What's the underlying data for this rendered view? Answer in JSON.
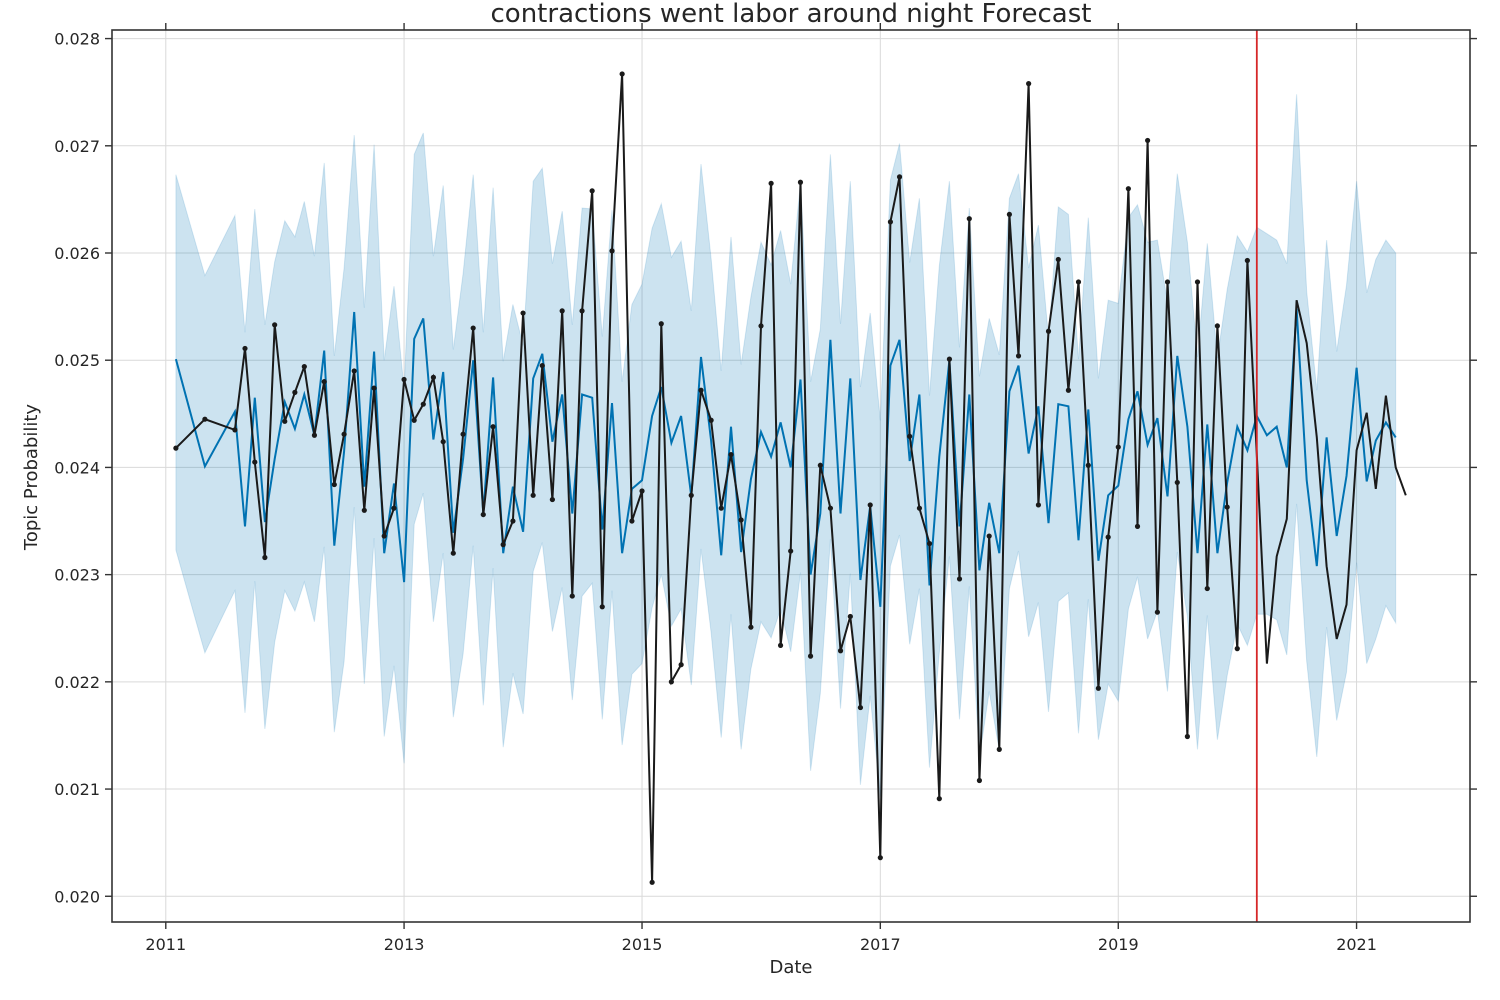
{
  "chart_data": {
    "type": "line",
    "title": "contractions went labor around night Forecast",
    "xlabel": "Date",
    "ylabel": "Topic Probability",
    "xlim": [
      "2010-07-20",
      "2021-12-15"
    ],
    "ylim": [
      0.01976,
      0.02808
    ],
    "x_ticks": [
      "2011-01-01",
      "2013-01-01",
      "2015-01-01",
      "2017-01-01",
      "2019-01-01",
      "2021-01-01"
    ],
    "x_tick_labels": [
      "2011",
      "2013",
      "2015",
      "2017",
      "2019",
      "2021"
    ],
    "y_ticks": [
      0.02,
      0.021,
      0.022,
      0.023,
      0.024,
      0.025,
      0.026,
      0.027,
      0.028
    ],
    "y_tick_labels": [
      "0.020",
      "0.021",
      "0.022",
      "0.023",
      "0.024",
      "0.025",
      "0.026",
      "0.027",
      "0.028"
    ],
    "grid": true,
    "changepoint_date": "2020-03-01",
    "colors": {
      "forecast": "#0072b2",
      "band": "#0072b2",
      "actual": "#1a1a1a",
      "changepoint": "#d62728",
      "grid": "#d9d9d9",
      "frame": "#333333"
    },
    "series": [
      {
        "role": "forecast",
        "x": [
          "2011-02-01",
          "2011-05-01",
          "2011-08-01",
          "2011-09-01",
          "2011-10-01",
          "2011-11-01",
          "2011-12-01",
          "2012-01-01",
          "2012-02-01",
          "2012-03-01",
          "2012-04-01",
          "2012-05-01",
          "2012-06-01",
          "2012-07-01",
          "2012-08-01",
          "2012-09-01",
          "2012-10-01",
          "2012-11-01",
          "2012-12-01",
          "2013-01-01",
          "2013-02-01",
          "2013-03-01",
          "2013-04-01",
          "2013-05-01",
          "2013-06-01",
          "2013-07-01",
          "2013-08-01",
          "2013-09-01",
          "2013-10-01",
          "2013-11-01",
          "2013-12-01",
          "2014-01-01",
          "2014-02-01",
          "2014-03-01",
          "2014-04-01",
          "2014-05-01",
          "2014-06-01",
          "2014-07-01",
          "2014-08-01",
          "2014-09-01",
          "2014-10-01",
          "2014-11-01",
          "2014-12-01",
          "2015-01-01",
          "2015-02-01",
          "2015-03-01",
          "2015-04-01",
          "2015-05-01",
          "2015-06-01",
          "2015-07-01",
          "2015-08-01",
          "2015-09-01",
          "2015-10-01",
          "2015-11-01",
          "2015-12-01",
          "2016-01-01",
          "2016-02-01",
          "2016-03-01",
          "2016-04-01",
          "2016-05-01",
          "2016-06-01",
          "2016-07-01",
          "2016-08-01",
          "2016-09-01",
          "2016-10-01",
          "2016-11-01",
          "2016-12-01",
          "2017-01-01",
          "2017-02-01",
          "2017-03-01",
          "2017-04-01",
          "2017-05-01",
          "2017-06-01",
          "2017-07-01",
          "2017-08-01",
          "2017-09-01",
          "2017-10-01",
          "2017-11-01",
          "2017-12-01",
          "2018-01-01",
          "2018-02-01",
          "2018-03-01",
          "2018-04-01",
          "2018-05-01",
          "2018-06-01",
          "2018-07-01",
          "2018-08-01",
          "2018-09-01",
          "2018-10-01",
          "2018-11-01",
          "2018-12-01",
          "2019-01-01",
          "2019-02-01",
          "2019-03-01",
          "2019-04-01",
          "2019-05-01",
          "2019-06-01",
          "2019-07-01",
          "2019-08-01",
          "2019-09-01",
          "2019-10-01",
          "2019-11-01",
          "2019-12-01",
          "2020-01-01",
          "2020-02-01",
          "2020-03-01",
          "2020-04-01",
          "2020-05-01",
          "2020-06-01",
          "2020-07-01",
          "2020-08-01",
          "2020-09-01",
          "2020-10-01",
          "2020-11-01",
          "2020-12-01",
          "2021-01-01",
          "2021-02-01",
          "2021-03-01",
          "2021-04-01",
          "2021-05-01"
        ],
        "yhat": [
          0.02501,
          0.02401,
          0.02452,
          0.02345,
          0.02465,
          0.02349,
          0.02408,
          0.02461,
          0.02436,
          0.02468,
          0.0243,
          0.02509,
          0.02327,
          0.02415,
          0.02545,
          0.02382,
          0.02508,
          0.0232,
          0.02385,
          0.02293,
          0.0252,
          0.02539,
          0.02426,
          0.02489,
          0.02339,
          0.02408,
          0.025,
          0.02357,
          0.02484,
          0.0232,
          0.02382,
          0.0234,
          0.02483,
          0.02506,
          0.02424,
          0.02468,
          0.02357,
          0.02468,
          0.02465,
          0.02342,
          0.0246,
          0.0232,
          0.0238,
          0.02388,
          0.02448,
          0.02475,
          0.02423,
          0.02448,
          0.02373,
          0.02503,
          0.02425,
          0.02318,
          0.02438,
          0.02321,
          0.02389,
          0.02433,
          0.0241,
          0.02442,
          0.024,
          0.02482,
          0.023,
          0.02357,
          0.02519,
          0.02357,
          0.02483,
          0.02295,
          0.02364,
          0.0227,
          0.02495,
          0.02519,
          0.02406,
          0.02468,
          0.0229,
          0.0241,
          0.025,
          0.02345,
          0.02468,
          0.02304,
          0.02367,
          0.0232,
          0.02471,
          0.02495,
          0.02413,
          0.02457,
          0.02348,
          0.02459,
          0.02457,
          0.02332,
          0.02454,
          0.02313,
          0.02374,
          0.02383,
          0.02445,
          0.02471,
          0.02421,
          0.02446,
          0.02373,
          0.02504,
          0.02438,
          0.0232,
          0.0244,
          0.0232,
          0.02386,
          0.02438,
          0.02416,
          0.02448,
          0.0243,
          0.02438,
          0.024,
          0.02548,
          0.02388,
          0.02308,
          0.02428,
          0.02336,
          0.02392,
          0.02493,
          0.02387,
          0.02425,
          0.02442,
          0.02428,
          0.02427
        ],
        "yhat_lower": [
          0.02323,
          0.02227,
          0.02285,
          0.02171,
          0.02294,
          0.02156,
          0.02237,
          0.02285,
          0.02266,
          0.02293,
          0.02256,
          0.02326,
          0.02153,
          0.02219,
          0.02363,
          0.02198,
          0.02334,
          0.02149,
          0.02215,
          0.02124,
          0.02347,
          0.02376,
          0.02256,
          0.0232,
          0.02167,
          0.02226,
          0.02327,
          0.02178,
          0.02306,
          0.02139,
          0.02208,
          0.0217,
          0.02303,
          0.0233,
          0.02247,
          0.02288,
          0.02183,
          0.0228,
          0.02292,
          0.02165,
          0.02285,
          0.02141,
          0.02207,
          0.02217,
          0.02269,
          0.023,
          0.02252,
          0.02268,
          0.02197,
          0.02324,
          0.02246,
          0.02148,
          0.02263,
          0.02137,
          0.02212,
          0.02256,
          0.02241,
          0.02268,
          0.02228,
          0.02302,
          0.02117,
          0.02189,
          0.02333,
          0.02175,
          0.02301,
          0.02104,
          0.02187,
          0.02093,
          0.02308,
          0.02337,
          0.02235,
          0.02287,
          0.0212,
          0.02227,
          0.02317,
          0.02165,
          0.02289,
          0.02129,
          0.02191,
          0.02136,
          0.02287,
          0.02322,
          0.02242,
          0.02274,
          0.02172,
          0.02275,
          0.02283,
          0.02152,
          0.02277,
          0.02146,
          0.02198,
          0.02182,
          0.02268,
          0.02298,
          0.0224,
          0.02266,
          0.02191,
          0.02321,
          0.02261,
          0.02137,
          0.02262,
          0.02146,
          0.02206,
          0.02254,
          0.02234,
          0.02263,
          0.02263,
          0.02258,
          0.02225,
          0.02366,
          0.02219,
          0.0213,
          0.02251,
          0.02164,
          0.02209,
          0.02311,
          0.02217,
          0.0224,
          0.02271,
          0.02255,
          0.02242
        ],
        "yhat_upper": [
          0.02673,
          0.02579,
          0.02635,
          0.02526,
          0.02641,
          0.02533,
          0.02592,
          0.0263,
          0.02615,
          0.02648,
          0.02597,
          0.02684,
          0.02504,
          0.02586,
          0.0271,
          0.02549,
          0.02701,
          0.025,
          0.02569,
          0.02473,
          0.02692,
          0.02712,
          0.02597,
          0.02663,
          0.0251,
          0.02581,
          0.02673,
          0.02526,
          0.02661,
          0.02499,
          0.02552,
          0.02514,
          0.02667,
          0.02679,
          0.0259,
          0.02639,
          0.02533,
          0.02642,
          0.02641,
          0.02522,
          0.0264,
          0.0248,
          0.02552,
          0.02571,
          0.02623,
          0.02646,
          0.02596,
          0.02611,
          0.02546,
          0.02683,
          0.02595,
          0.0249,
          0.02615,
          0.02496,
          0.02559,
          0.0261,
          0.02589,
          0.02621,
          0.02571,
          0.02666,
          0.0248,
          0.02529,
          0.02692,
          0.02534,
          0.02667,
          0.02475,
          0.02544,
          0.02444,
          0.02668,
          0.02702,
          0.02591,
          0.02651,
          0.02467,
          0.02588,
          0.02667,
          0.02512,
          0.02642,
          0.02485,
          0.02539,
          0.02505,
          0.02651,
          0.02674,
          0.02586,
          0.02626,
          0.02521,
          0.02643,
          0.02636,
          0.02501,
          0.02633,
          0.02483,
          0.02556,
          0.02553,
          0.02633,
          0.02645,
          0.0261,
          0.02612,
          0.02554,
          0.02674,
          0.0261,
          0.02503,
          0.02609,
          0.02502,
          0.02566,
          0.02616,
          0.02601,
          0.02624,
          0.02618,
          0.02612,
          0.0259,
          0.02748,
          0.02564,
          0.02472,
          0.02612,
          0.02508,
          0.0257,
          0.02667,
          0.02563,
          0.02594,
          0.02612,
          0.026,
          0.02604
        ]
      },
      {
        "role": "actual",
        "x": [
          "2011-02-01",
          "2011-05-01",
          "2011-08-01",
          "2011-09-01",
          "2011-10-01",
          "2011-11-01",
          "2011-12-01",
          "2012-01-01",
          "2012-02-01",
          "2012-03-01",
          "2012-04-01",
          "2012-05-01",
          "2012-06-01",
          "2012-07-01",
          "2012-08-01",
          "2012-09-01",
          "2012-10-01",
          "2012-11-01",
          "2012-12-01",
          "2013-01-01",
          "2013-02-01",
          "2013-03-01",
          "2013-04-01",
          "2013-05-01",
          "2013-06-01",
          "2013-07-01",
          "2013-08-01",
          "2013-09-01",
          "2013-10-01",
          "2013-11-01",
          "2013-12-01",
          "2014-01-01",
          "2014-02-01",
          "2014-03-01",
          "2014-04-01",
          "2014-05-01",
          "2014-06-01",
          "2014-07-01",
          "2014-08-01",
          "2014-09-01",
          "2014-10-01",
          "2014-11-01",
          "2014-12-01",
          "2015-01-01",
          "2015-02-01",
          "2015-03-01",
          "2015-04-01",
          "2015-05-01",
          "2015-06-01",
          "2015-07-01",
          "2015-08-01",
          "2015-09-01",
          "2015-10-01",
          "2015-11-01",
          "2015-12-01",
          "2016-01-01",
          "2016-02-01",
          "2016-03-01",
          "2016-04-01",
          "2016-05-01",
          "2016-06-01",
          "2016-07-01",
          "2016-08-01",
          "2016-09-01",
          "2016-10-01",
          "2016-11-01",
          "2016-12-01",
          "2017-01-01",
          "2017-02-01",
          "2017-03-01",
          "2017-04-01",
          "2017-05-01",
          "2017-06-01",
          "2017-07-01",
          "2017-08-01",
          "2017-09-01",
          "2017-10-01",
          "2017-11-01",
          "2017-12-01",
          "2018-01-01",
          "2018-02-01",
          "2018-03-01",
          "2018-04-01",
          "2018-05-01",
          "2018-06-01",
          "2018-07-01",
          "2018-08-01",
          "2018-09-01",
          "2018-10-01",
          "2018-11-01",
          "2018-12-01",
          "2019-01-01",
          "2019-02-01",
          "2019-03-01",
          "2019-04-01",
          "2019-05-01",
          "2019-06-01",
          "2019-07-01",
          "2019-08-01",
          "2019-09-01",
          "2019-10-01",
          "2019-11-01",
          "2019-12-01",
          "2020-01-01",
          "2020-02-01"
        ],
        "y": [
          0.02418,
          0.02445,
          0.02435,
          0.02511,
          0.02405,
          0.02316,
          0.02533,
          0.02443,
          0.0247,
          0.02494,
          0.0243,
          0.0248,
          0.02384,
          0.02431,
          0.0249,
          0.0236,
          0.02474,
          0.02336,
          0.02362,
          0.02482,
          0.02444,
          0.02459,
          0.02484,
          0.02424,
          0.0232,
          0.02431,
          0.0253,
          0.02356,
          0.02438,
          0.02328,
          0.0235,
          0.02544,
          0.02374,
          0.02495,
          0.0237,
          0.02546,
          0.0228,
          0.02546,
          0.02658,
          0.0227,
          0.02602,
          0.02767,
          0.0235,
          0.02378,
          0.02013,
          0.02534,
          0.022,
          0.02216,
          0.02374,
          0.02472,
          0.02444,
          0.02362,
          0.02412,
          0.02351,
          0.02251,
          0.02532,
          0.02665,
          0.02234,
          0.02322,
          0.02666,
          0.02224,
          0.02402,
          0.02362,
          0.02229,
          0.02261,
          0.02176,
          0.02365,
          0.02036,
          0.02629,
          0.02671,
          0.02429,
          0.02362,
          0.02329,
          0.02091,
          0.02501,
          0.02296,
          0.02632,
          0.02108,
          0.02336,
          0.02137,
          0.02636,
          0.02504,
          0.02758,
          0.02365,
          0.02527,
          0.02594,
          0.02472,
          0.02573,
          0.02402,
          0.02194,
          0.02335,
          0.02419,
          0.0266,
          0.02345,
          0.02705,
          0.02265,
          0.02573,
          0.02386,
          0.02149,
          0.02573,
          0.02287,
          0.02532,
          0.02363,
          0.02231,
          0.02593
        ]
      },
      {
        "role": "projection",
        "x": [
          "2020-02-01",
          "2020-04-01",
          "2020-05-01",
          "2020-06-01",
          "2020-07-01",
          "2020-08-01",
          "2020-09-01",
          "2020-10-01",
          "2020-11-01",
          "2020-12-01",
          "2021-01-01",
          "2021-02-01",
          "2021-03-01",
          "2021-04-01",
          "2021-05-01",
          "2021-06-01"
        ],
        "y": [
          0.02593,
          0.02217,
          0.02317,
          0.02352,
          0.02556,
          0.02516,
          0.02428,
          0.02308,
          0.0224,
          0.02272,
          0.02416,
          0.02451,
          0.0238,
          0.02467,
          0.024,
          0.02374
        ]
      }
    ]
  }
}
